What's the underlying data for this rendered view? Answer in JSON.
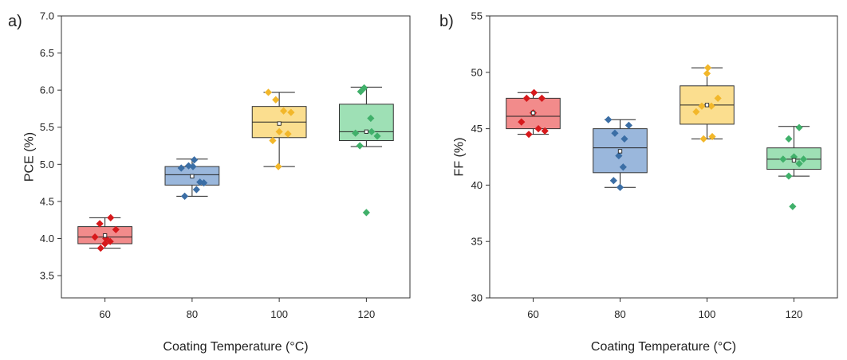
{
  "chart_data": [
    {
      "type": "box",
      "panel_label": "a)",
      "xlabel": "Coating Temperature (°C)",
      "ylabel": "PCE (%)",
      "categories": [
        "60",
        "80",
        "100",
        "120"
      ],
      "ylim": [
        3.2,
        7.0
      ],
      "yticks": [
        "3.5",
        "4.0",
        "4.5",
        "5.0",
        "5.5",
        "6.0",
        "6.5",
        "7.0"
      ],
      "colors": {
        "fill": [
          "#f28b8b",
          "#9ab7dc",
          "#fbde8f",
          "#9ee0b5"
        ],
        "edge": [
          "#333333",
          "#333333",
          "#333333",
          "#333333"
        ],
        "points": [
          "#d7191c",
          "#3b6ea5",
          "#f2b72a",
          "#40b06a"
        ]
      },
      "boxes": [
        {
          "category": "60",
          "q1": 3.93,
          "median": 4.02,
          "q3": 4.16,
          "whisker_low": 3.87,
          "whisker_high": 4.28,
          "mean": 4.04,
          "points": [
            [
              -0.23,
              4.02
            ],
            [
              -0.12,
              4.2
            ],
            [
              -0.1,
              3.87
            ],
            [
              0.0,
              3.93
            ],
            [
              0.02,
              4.0
            ],
            [
              0.12,
              3.96
            ],
            [
              0.13,
              4.28
            ],
            [
              0.25,
              4.12
            ]
          ]
        },
        {
          "category": "80",
          "q1": 4.72,
          "median": 4.86,
          "q3": 4.97,
          "whisker_low": 4.57,
          "whisker_high": 5.07,
          "mean": 4.84,
          "points": [
            [
              -0.25,
              4.95
            ],
            [
              -0.17,
              4.57
            ],
            [
              -0.08,
              4.98
            ],
            [
              0.02,
              4.97
            ],
            [
              0.05,
              5.06
            ],
            [
              0.1,
              4.66
            ],
            [
              0.18,
              4.76
            ],
            [
              0.27,
              4.75
            ]
          ]
        },
        {
          "category": "100",
          "q1": 5.36,
          "median": 5.57,
          "q3": 5.78,
          "whisker_low": 4.97,
          "whisker_high": 5.97,
          "mean": 5.55,
          "points": [
            [
              -0.25,
              5.97
            ],
            [
              -0.15,
              5.32
            ],
            [
              -0.08,
              5.87
            ],
            [
              -0.02,
              4.97
            ],
            [
              0.0,
              5.44
            ],
            [
              0.1,
              5.72
            ],
            [
              0.2,
              5.41
            ],
            [
              0.27,
              5.7
            ]
          ]
        },
        {
          "category": "120",
          "q1": 5.32,
          "median": 5.44,
          "q3": 5.81,
          "whisker_low": 5.24,
          "whisker_high": 6.04,
          "mean": 5.44,
          "points": [
            [
              -0.25,
              5.42
            ],
            [
              -0.15,
              5.25
            ],
            [
              -0.13,
              5.98
            ],
            [
              -0.05,
              6.03
            ],
            [
              0.0,
              4.35
            ],
            [
              0.1,
              5.62
            ],
            [
              0.12,
              5.44
            ],
            [
              0.25,
              5.38
            ]
          ]
        }
      ]
    },
    {
      "type": "box",
      "panel_label": "b)",
      "xlabel": "Coating Temperature (°C)",
      "ylabel": "FF (%)",
      "categories": [
        "60",
        "80",
        "100",
        "120"
      ],
      "ylim": [
        30,
        55
      ],
      "yticks": [
        "30",
        "35",
        "40",
        "45",
        "50",
        "55"
      ],
      "colors": {
        "fill": [
          "#f28b8b",
          "#9ab7dc",
          "#fbde8f",
          "#9ee0b5"
        ],
        "edge": [
          "#333333",
          "#333333",
          "#333333",
          "#333333"
        ],
        "points": [
          "#d7191c",
          "#3b6ea5",
          "#f2b72a",
          "#40b06a"
        ]
      },
      "boxes": [
        {
          "category": "60",
          "q1": 45.0,
          "median": 46.1,
          "q3": 47.7,
          "whisker_low": 44.5,
          "whisker_high": 48.2,
          "mean": 46.4,
          "points": [
            [
              -0.27,
              45.6
            ],
            [
              -0.15,
              47.7
            ],
            [
              -0.1,
              44.5
            ],
            [
              0.0,
              46.4
            ],
            [
              0.02,
              48.2
            ],
            [
              0.12,
              45.0
            ],
            [
              0.2,
              47.7
            ],
            [
              0.27,
              44.8
            ]
          ]
        },
        {
          "category": "80",
          "q1": 41.1,
          "median": 43.3,
          "q3": 45.0,
          "whisker_low": 39.8,
          "whisker_high": 45.8,
          "mean": 43.0,
          "points": [
            [
              -0.27,
              45.8
            ],
            [
              -0.15,
              40.4
            ],
            [
              -0.12,
              44.6
            ],
            [
              -0.03,
              42.6
            ],
            [
              0.0,
              39.8
            ],
            [
              0.07,
              41.6
            ],
            [
              0.1,
              44.1
            ],
            [
              0.2,
              45.3
            ]
          ]
        },
        {
          "category": "100",
          "q1": 45.4,
          "median": 47.1,
          "q3": 48.8,
          "whisker_low": 44.1,
          "whisker_high": 50.4,
          "mean": 47.1,
          "points": [
            [
              -0.25,
              46.5
            ],
            [
              -0.12,
              47.0
            ],
            [
              -0.08,
              44.1
            ],
            [
              0.0,
              49.9
            ],
            [
              0.02,
              50.4
            ],
            [
              0.1,
              47.0
            ],
            [
              0.12,
              44.3
            ],
            [
              0.25,
              47.7
            ]
          ]
        },
        {
          "category": "120",
          "q1": 41.4,
          "median": 42.3,
          "q3": 43.3,
          "whisker_low": 40.8,
          "whisker_high": 45.2,
          "mean": 42.2,
          "points": [
            [
              -0.25,
              42.3
            ],
            [
              -0.12,
              44.1
            ],
            [
              -0.12,
              40.8
            ],
            [
              -0.03,
              38.1
            ],
            [
              0.0,
              42.5
            ],
            [
              0.12,
              41.9
            ],
            [
              0.12,
              45.1
            ],
            [
              0.22,
              42.3
            ]
          ]
        }
      ]
    }
  ]
}
